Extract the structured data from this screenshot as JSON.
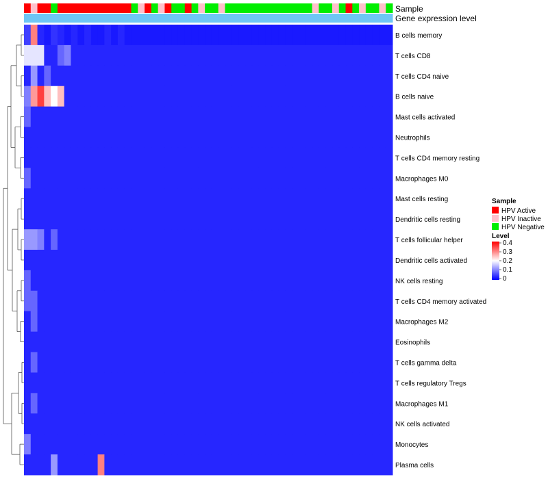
{
  "chart_data": {
    "type": "heatmap",
    "title": "",
    "annotation_tracks": [
      {
        "name": "Sample",
        "label": "Sample"
      },
      {
        "name": "Gene expression level",
        "label": "Gene expression level"
      }
    ],
    "sample_groups": [
      {
        "name": "HPV Active",
        "color": "#ff0000"
      },
      {
        "name": "HPV Inactive",
        "color": "#ffc0cb"
      },
      {
        "name": "HPV Negative",
        "color": "#00ee00"
      }
    ],
    "sample_annotation": [
      0,
      1,
      0,
      0,
      2,
      0,
      0,
      0,
      0,
      0,
      0,
      0,
      0,
      0,
      0,
      0,
      2,
      1,
      0,
      2,
      1,
      0,
      2,
      2,
      0,
      2,
      1,
      2,
      2,
      1,
      2,
      2,
      2,
      2,
      2,
      2,
      2,
      2,
      2,
      2,
      2,
      2,
      2,
      1,
      2,
      2,
      1,
      2,
      0,
      2,
      1,
      2,
      2,
      1,
      2
    ],
    "gene_expression_bar_color": "#6ec6f5",
    "legend": {
      "sample_title": "Sample",
      "level_title": "Level",
      "level_ticks": [
        "0.4",
        "0.3",
        "0.2",
        "0.1",
        "0"
      ],
      "level_range": [
        0,
        0.4
      ],
      "colormap": [
        "#0000ff",
        "#ffffff",
        "#ff0000"
      ]
    },
    "rows": [
      "B cells memory",
      "T cells CD8",
      "T cells CD4 naive",
      "B cells naive",
      "Mast cells activated",
      "Neutrophils",
      "T cells CD4 memory resting",
      "Macrophages M0",
      "Mast cells resting",
      "Dendritic cells resting",
      "T cells follicular helper",
      "Dendritic cells activated",
      "NK cells resting",
      "T cells CD4 memory activated",
      "Macrophages M2",
      "Eosinophils",
      "T cells gamma delta",
      "T cells regulatory  Tregs",
      "Macrophages M1",
      "NK cells activated",
      "Monocytes",
      "Plasma cells"
    ],
    "values": [
      [
        0.05,
        0.3,
        0.03,
        0.02,
        0.04,
        0.03,
        0.02,
        0.03,
        0.02,
        0.03,
        0.02,
        0.02,
        0.03,
        0.02,
        0.03,
        0.02,
        0.02,
        0.02,
        0.02,
        0.02,
        0.02,
        0.02,
        0.02,
        0.02,
        0.02,
        0.02,
        0.02,
        0.02,
        0.02,
        0.02,
        0.02,
        0.02,
        0.02,
        0.02,
        0.02,
        0.02,
        0.02,
        0.02,
        0.02,
        0.02,
        0.02,
        0.02,
        0.02,
        0.02,
        0.02,
        0.02,
        0.02,
        0.02,
        0.02,
        0.02,
        0.02,
        0.02,
        0.02,
        0.02,
        0.02
      ],
      [
        0.18,
        0.18,
        0.18,
        0.03,
        0.03,
        0.08,
        0.1,
        0.03,
        0.03,
        0.03,
        0.03,
        0.03,
        0.03,
        0.03,
        0.03,
        0.03,
        0.03,
        0.03,
        0.03,
        0.03,
        0.03,
        0.03,
        0.03,
        0.03,
        0.03,
        0.03,
        0.03,
        0.03,
        0.03,
        0.03,
        0.03,
        0.03,
        0.03,
        0.03,
        0.03,
        0.03,
        0.03,
        0.03,
        0.03,
        0.03,
        0.03,
        0.03,
        0.03,
        0.03,
        0.03,
        0.03,
        0.03,
        0.03,
        0.03,
        0.03,
        0.03,
        0.03,
        0.03,
        0.03,
        0.03
      ],
      [
        0.03,
        0.12,
        0.03,
        0.08,
        0.03,
        0.03,
        0.03,
        0.03,
        0.03,
        0.03,
        0.03,
        0.03,
        0.03,
        0.03,
        0.03,
        0.03,
        0.03,
        0.03,
        0.03,
        0.03,
        0.03,
        0.03,
        0.03,
        0.03,
        0.03,
        0.03,
        0.03,
        0.03,
        0.03,
        0.03,
        0.03,
        0.03,
        0.03,
        0.03,
        0.03,
        0.03,
        0.03,
        0.03,
        0.03,
        0.03,
        0.03,
        0.03,
        0.03,
        0.03,
        0.03,
        0.03,
        0.03,
        0.03,
        0.03,
        0.03,
        0.03,
        0.03,
        0.03,
        0.03,
        0.03
      ],
      [
        0.1,
        0.28,
        0.35,
        0.25,
        0.2,
        0.25,
        0.03,
        0.03,
        0.03,
        0.03,
        0.03,
        0.03,
        0.03,
        0.03,
        0.03,
        0.03,
        0.03,
        0.03,
        0.03,
        0.03,
        0.03,
        0.03,
        0.03,
        0.03,
        0.03,
        0.03,
        0.03,
        0.03,
        0.03,
        0.03,
        0.03,
        0.03,
        0.03,
        0.03,
        0.03,
        0.03,
        0.03,
        0.03,
        0.03,
        0.03,
        0.03,
        0.03,
        0.03,
        0.03,
        0.03,
        0.03,
        0.03,
        0.03,
        0.03,
        0.03,
        0.03,
        0.03,
        0.03,
        0.03,
        0.03
      ],
      [
        0.08,
        0.03,
        0.03,
        0.03,
        0.03,
        0.03,
        0.03,
        0.03,
        0.03,
        0.03,
        0.03,
        0.03,
        0.03,
        0.03,
        0.03,
        0.03,
        0.03,
        0.03,
        0.03,
        0.03,
        0.03,
        0.03,
        0.03,
        0.03,
        0.03,
        0.03,
        0.03,
        0.03,
        0.03,
        0.03,
        0.03,
        0.03,
        0.03,
        0.03,
        0.03,
        0.03,
        0.03,
        0.03,
        0.03,
        0.03,
        0.03,
        0.03,
        0.03,
        0.03,
        0.03,
        0.03,
        0.03,
        0.03,
        0.03,
        0.03,
        0.03,
        0.03,
        0.03,
        0.03,
        0.03
      ],
      [
        0.03,
        0.03,
        0.03,
        0.03,
        0.03,
        0.03,
        0.03,
        0.03,
        0.03,
        0.03,
        0.03,
        0.03,
        0.03,
        0.03,
        0.03,
        0.03,
        0.03,
        0.03,
        0.03,
        0.03,
        0.03,
        0.03,
        0.03,
        0.03,
        0.03,
        0.03,
        0.03,
        0.03,
        0.03,
        0.03,
        0.03,
        0.03,
        0.03,
        0.03,
        0.03,
        0.03,
        0.03,
        0.03,
        0.03,
        0.03,
        0.03,
        0.03,
        0.03,
        0.03,
        0.03,
        0.03,
        0.03,
        0.03,
        0.03,
        0.03,
        0.03,
        0.03,
        0.03,
        0.03,
        0.03
      ],
      [
        0.03,
        0.03,
        0.03,
        0.03,
        0.03,
        0.03,
        0.03,
        0.03,
        0.03,
        0.03,
        0.03,
        0.03,
        0.03,
        0.03,
        0.03,
        0.03,
        0.03,
        0.03,
        0.03,
        0.03,
        0.03,
        0.03,
        0.03,
        0.03,
        0.03,
        0.03,
        0.03,
        0.03,
        0.03,
        0.03,
        0.03,
        0.03,
        0.03,
        0.03,
        0.03,
        0.03,
        0.03,
        0.03,
        0.03,
        0.03,
        0.03,
        0.03,
        0.03,
        0.03,
        0.03,
        0.03,
        0.03,
        0.03,
        0.03,
        0.03,
        0.03,
        0.03,
        0.03,
        0.03,
        0.03
      ],
      [
        0.08,
        0.03,
        0.03,
        0.03,
        0.03,
        0.03,
        0.03,
        0.03,
        0.03,
        0.03,
        0.03,
        0.03,
        0.03,
        0.03,
        0.03,
        0.03,
        0.03,
        0.03,
        0.03,
        0.03,
        0.03,
        0.03,
        0.03,
        0.03,
        0.03,
        0.03,
        0.03,
        0.03,
        0.03,
        0.03,
        0.03,
        0.03,
        0.03,
        0.03,
        0.03,
        0.03,
        0.03,
        0.03,
        0.03,
        0.03,
        0.03,
        0.03,
        0.03,
        0.03,
        0.03,
        0.03,
        0.03,
        0.03,
        0.03,
        0.03,
        0.03,
        0.03,
        0.03,
        0.03,
        0.03
      ],
      [
        0.03,
        0.03,
        0.03,
        0.03,
        0.03,
        0.03,
        0.03,
        0.03,
        0.03,
        0.03,
        0.03,
        0.03,
        0.03,
        0.03,
        0.03,
        0.03,
        0.03,
        0.03,
        0.03,
        0.03,
        0.03,
        0.03,
        0.03,
        0.03,
        0.03,
        0.03,
        0.03,
        0.03,
        0.03,
        0.03,
        0.03,
        0.03,
        0.03,
        0.03,
        0.03,
        0.03,
        0.03,
        0.03,
        0.03,
        0.03,
        0.03,
        0.03,
        0.03,
        0.03,
        0.03,
        0.03,
        0.03,
        0.03,
        0.03,
        0.03,
        0.03,
        0.03,
        0.03,
        0.03,
        0.03
      ],
      [
        0.03,
        0.03,
        0.03,
        0.03,
        0.03,
        0.03,
        0.03,
        0.03,
        0.03,
        0.03,
        0.03,
        0.03,
        0.03,
        0.03,
        0.03,
        0.03,
        0.03,
        0.03,
        0.03,
        0.03,
        0.03,
        0.03,
        0.03,
        0.03,
        0.03,
        0.03,
        0.03,
        0.03,
        0.03,
        0.03,
        0.03,
        0.03,
        0.03,
        0.03,
        0.03,
        0.03,
        0.03,
        0.03,
        0.03,
        0.03,
        0.03,
        0.03,
        0.03,
        0.03,
        0.03,
        0.03,
        0.03,
        0.03,
        0.03,
        0.03,
        0.03,
        0.03,
        0.03,
        0.03,
        0.03
      ],
      [
        0.12,
        0.12,
        0.1,
        0.03,
        0.08,
        0.03,
        0.03,
        0.03,
        0.03,
        0.03,
        0.03,
        0.03,
        0.03,
        0.03,
        0.03,
        0.03,
        0.03,
        0.03,
        0.03,
        0.03,
        0.03,
        0.03,
        0.03,
        0.03,
        0.03,
        0.03,
        0.03,
        0.03,
        0.03,
        0.03,
        0.03,
        0.03,
        0.03,
        0.03,
        0.03,
        0.03,
        0.03,
        0.03,
        0.03,
        0.03,
        0.03,
        0.03,
        0.03,
        0.03,
        0.03,
        0.03,
        0.03,
        0.03,
        0.03,
        0.03,
        0.03,
        0.03,
        0.03,
        0.03,
        0.03
      ],
      [
        0.03,
        0.03,
        0.03,
        0.03,
        0.03,
        0.03,
        0.03,
        0.03,
        0.03,
        0.03,
        0.03,
        0.03,
        0.03,
        0.03,
        0.03,
        0.03,
        0.03,
        0.03,
        0.03,
        0.03,
        0.03,
        0.03,
        0.03,
        0.03,
        0.03,
        0.03,
        0.03,
        0.03,
        0.03,
        0.03,
        0.03,
        0.03,
        0.03,
        0.03,
        0.03,
        0.03,
        0.03,
        0.03,
        0.03,
        0.03,
        0.03,
        0.03,
        0.03,
        0.03,
        0.03,
        0.03,
        0.03,
        0.03,
        0.03,
        0.03,
        0.03,
        0.03,
        0.03,
        0.03,
        0.03
      ],
      [
        0.08,
        0.03,
        0.03,
        0.03,
        0.03,
        0.03,
        0.03,
        0.03,
        0.03,
        0.03,
        0.03,
        0.03,
        0.03,
        0.03,
        0.03,
        0.03,
        0.03,
        0.03,
        0.03,
        0.03,
        0.03,
        0.03,
        0.03,
        0.03,
        0.03,
        0.03,
        0.03,
        0.03,
        0.03,
        0.03,
        0.03,
        0.03,
        0.03,
        0.03,
        0.03,
        0.03,
        0.03,
        0.03,
        0.03,
        0.03,
        0.03,
        0.03,
        0.03,
        0.03,
        0.03,
        0.03,
        0.03,
        0.03,
        0.03,
        0.03,
        0.03,
        0.03,
        0.03,
        0.03,
        0.03
      ],
      [
        0.08,
        0.08,
        0.03,
        0.03,
        0.03,
        0.03,
        0.03,
        0.03,
        0.03,
        0.03,
        0.03,
        0.03,
        0.03,
        0.03,
        0.03,
        0.03,
        0.03,
        0.03,
        0.03,
        0.03,
        0.03,
        0.03,
        0.03,
        0.03,
        0.03,
        0.03,
        0.03,
        0.03,
        0.03,
        0.03,
        0.03,
        0.03,
        0.03,
        0.03,
        0.03,
        0.03,
        0.03,
        0.03,
        0.03,
        0.03,
        0.03,
        0.03,
        0.03,
        0.03,
        0.03,
        0.03,
        0.03,
        0.03,
        0.03,
        0.03,
        0.03,
        0.03,
        0.03,
        0.03,
        0.03
      ],
      [
        0.03,
        0.08,
        0.03,
        0.03,
        0.03,
        0.03,
        0.03,
        0.03,
        0.03,
        0.03,
        0.03,
        0.03,
        0.03,
        0.03,
        0.03,
        0.03,
        0.03,
        0.03,
        0.03,
        0.03,
        0.03,
        0.03,
        0.03,
        0.03,
        0.03,
        0.03,
        0.03,
        0.03,
        0.03,
        0.03,
        0.03,
        0.03,
        0.03,
        0.03,
        0.03,
        0.03,
        0.03,
        0.03,
        0.03,
        0.03,
        0.03,
        0.03,
        0.03,
        0.03,
        0.03,
        0.03,
        0.03,
        0.03,
        0.03,
        0.03,
        0.03,
        0.03,
        0.03,
        0.03,
        0.03
      ],
      [
        0.03,
        0.03,
        0.03,
        0.03,
        0.03,
        0.03,
        0.03,
        0.03,
        0.03,
        0.03,
        0.03,
        0.03,
        0.03,
        0.03,
        0.03,
        0.03,
        0.03,
        0.03,
        0.03,
        0.03,
        0.03,
        0.03,
        0.03,
        0.03,
        0.03,
        0.03,
        0.03,
        0.03,
        0.03,
        0.03,
        0.03,
        0.03,
        0.03,
        0.03,
        0.03,
        0.03,
        0.03,
        0.03,
        0.03,
        0.03,
        0.03,
        0.03,
        0.03,
        0.03,
        0.03,
        0.03,
        0.03,
        0.03,
        0.03,
        0.03,
        0.03,
        0.03,
        0.03,
        0.03,
        0.03
      ],
      [
        0.03,
        0.08,
        0.03,
        0.03,
        0.03,
        0.03,
        0.03,
        0.03,
        0.03,
        0.03,
        0.03,
        0.03,
        0.03,
        0.03,
        0.03,
        0.03,
        0.03,
        0.03,
        0.03,
        0.03,
        0.03,
        0.03,
        0.03,
        0.03,
        0.03,
        0.03,
        0.03,
        0.03,
        0.03,
        0.03,
        0.03,
        0.03,
        0.03,
        0.03,
        0.03,
        0.03,
        0.03,
        0.03,
        0.03,
        0.03,
        0.03,
        0.03,
        0.03,
        0.03,
        0.03,
        0.03,
        0.03,
        0.03,
        0.03,
        0.03,
        0.03,
        0.03,
        0.03,
        0.03,
        0.03
      ],
      [
        0.03,
        0.03,
        0.03,
        0.03,
        0.03,
        0.03,
        0.03,
        0.03,
        0.03,
        0.03,
        0.03,
        0.03,
        0.03,
        0.03,
        0.03,
        0.03,
        0.03,
        0.03,
        0.03,
        0.03,
        0.03,
        0.03,
        0.03,
        0.03,
        0.03,
        0.03,
        0.03,
        0.03,
        0.03,
        0.03,
        0.03,
        0.03,
        0.03,
        0.03,
        0.03,
        0.03,
        0.03,
        0.03,
        0.03,
        0.03,
        0.03,
        0.03,
        0.03,
        0.03,
        0.03,
        0.03,
        0.03,
        0.03,
        0.03,
        0.03,
        0.03,
        0.03,
        0.03,
        0.03,
        0.03
      ],
      [
        0.03,
        0.08,
        0.03,
        0.03,
        0.03,
        0.03,
        0.03,
        0.03,
        0.03,
        0.03,
        0.03,
        0.03,
        0.03,
        0.03,
        0.03,
        0.03,
        0.03,
        0.03,
        0.03,
        0.03,
        0.03,
        0.03,
        0.03,
        0.03,
        0.03,
        0.03,
        0.03,
        0.03,
        0.03,
        0.03,
        0.03,
        0.03,
        0.03,
        0.03,
        0.03,
        0.03,
        0.03,
        0.03,
        0.03,
        0.03,
        0.03,
        0.03,
        0.03,
        0.03,
        0.03,
        0.03,
        0.03,
        0.03,
        0.03,
        0.03,
        0.03,
        0.03,
        0.03,
        0.03,
        0.03
      ],
      [
        0.03,
        0.03,
        0.03,
        0.03,
        0.03,
        0.03,
        0.03,
        0.03,
        0.03,
        0.03,
        0.03,
        0.03,
        0.03,
        0.03,
        0.03,
        0.03,
        0.03,
        0.03,
        0.03,
        0.03,
        0.03,
        0.03,
        0.03,
        0.03,
        0.03,
        0.03,
        0.03,
        0.03,
        0.03,
        0.03,
        0.03,
        0.03,
        0.03,
        0.03,
        0.03,
        0.03,
        0.03,
        0.03,
        0.03,
        0.03,
        0.03,
        0.03,
        0.03,
        0.03,
        0.03,
        0.03,
        0.03,
        0.03,
        0.03,
        0.03,
        0.03,
        0.03,
        0.03,
        0.03,
        0.03
      ],
      [
        0.1,
        0.03,
        0.03,
        0.03,
        0.03,
        0.03,
        0.03,
        0.03,
        0.03,
        0.03,
        0.03,
        0.03,
        0.03,
        0.03,
        0.03,
        0.03,
        0.03,
        0.03,
        0.03,
        0.03,
        0.03,
        0.03,
        0.03,
        0.03,
        0.03,
        0.03,
        0.03,
        0.03,
        0.03,
        0.03,
        0.03,
        0.03,
        0.03,
        0.03,
        0.03,
        0.03,
        0.03,
        0.03,
        0.03,
        0.03,
        0.03,
        0.03,
        0.03,
        0.03,
        0.03,
        0.03,
        0.03,
        0.03,
        0.03,
        0.03,
        0.03,
        0.03,
        0.03,
        0.03,
        0.03
      ],
      [
        0.03,
        0.03,
        0.03,
        0.03,
        0.12,
        0.03,
        0.03,
        0.03,
        0.03,
        0.03,
        0.03,
        0.3,
        0.03,
        0.03,
        0.03,
        0.03,
        0.03,
        0.03,
        0.03,
        0.03,
        0.03,
        0.03,
        0.03,
        0.03,
        0.03,
        0.03,
        0.03,
        0.03,
        0.03,
        0.03,
        0.03,
        0.03,
        0.03,
        0.03,
        0.03,
        0.03,
        0.03,
        0.03,
        0.03,
        0.03,
        0.03,
        0.03,
        0.03,
        0.03,
        0.03,
        0.03,
        0.03,
        0.03,
        0.03,
        0.03,
        0.03,
        0.03,
        0.03,
        0.03,
        0.03
      ]
    ]
  }
}
